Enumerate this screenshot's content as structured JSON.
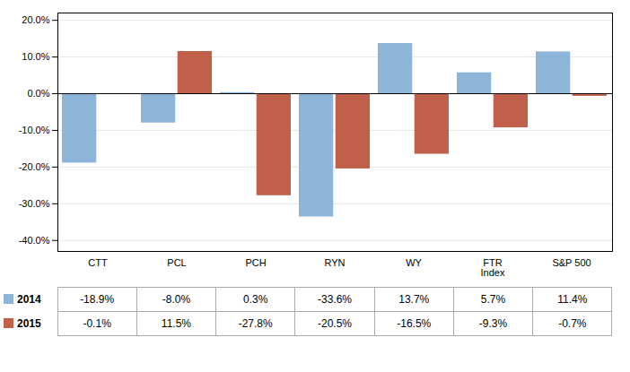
{
  "chart_data": {
    "type": "bar",
    "categories": [
      "CTT",
      "PCL",
      "PCH",
      "RYN",
      "WY",
      "FTR\nIndex",
      "S&P 500"
    ],
    "series": [
      {
        "name": "2014",
        "color": "#8DB4D9",
        "values": [
          -18.9,
          -8.0,
          0.3,
          -33.6,
          13.7,
          5.7,
          11.4
        ],
        "value_labels": [
          "-18.9%",
          "-8.0%",
          "0.3%",
          "-33.6%",
          "13.7%",
          "5.7%",
          "11.4%"
        ]
      },
      {
        "name": "2015",
        "color": "#C0604A",
        "values": [
          -0.1,
          11.5,
          -27.8,
          -20.5,
          -16.5,
          -9.3,
          -0.7
        ],
        "value_labels": [
          "-0.1%",
          "11.5%",
          "-27.8%",
          "-20.5%",
          "-16.5%",
          "-9.3%",
          "-0.7%"
        ]
      }
    ],
    "ylim": [
      -43,
      22
    ],
    "yticks": [
      {
        "value": -40.0,
        "label": "-40.0%"
      },
      {
        "value": -30.0,
        "label": "-30.0%"
      },
      {
        "value": -20.0,
        "label": "-20.0%"
      },
      {
        "value": -10.0,
        "label": "-10.0%"
      },
      {
        "value": 0.0,
        "label": "0.0%"
      },
      {
        "value": 10.0,
        "label": "10.0%"
      },
      {
        "value": 20.0,
        "label": "20.0%"
      }
    ],
    "grid": true,
    "data_labels": true
  }
}
